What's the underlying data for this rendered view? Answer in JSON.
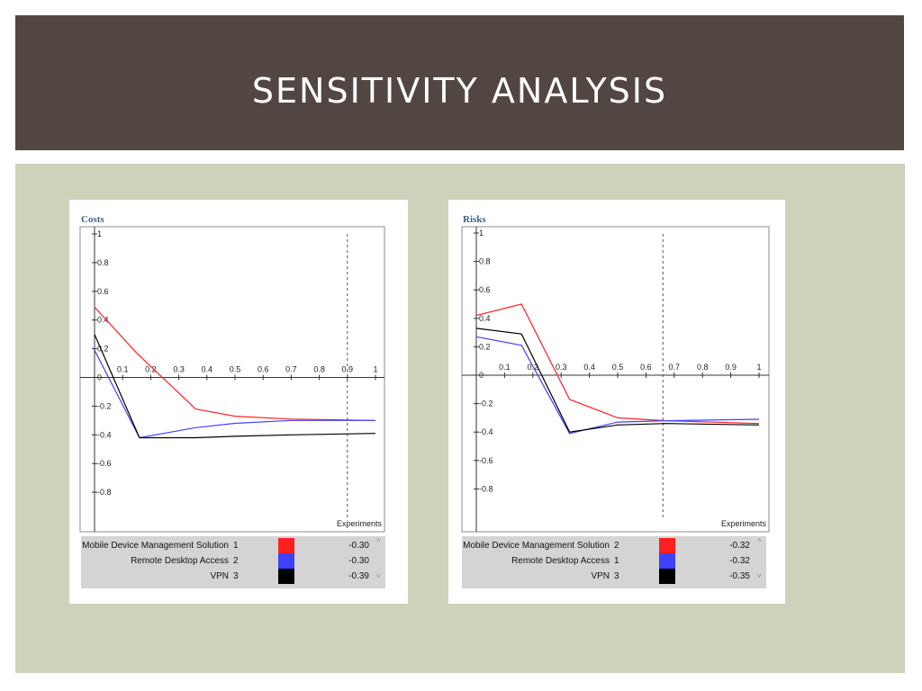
{
  "slide": {
    "title": "SENSITIVITY ANALYSIS"
  },
  "colors": {
    "header": "#524643",
    "content": "#cdd2bb"
  },
  "chart_data": [
    {
      "type": "line",
      "title": "Costs",
      "xlabel": "Experiments",
      "ylabel": "",
      "xlim": [
        0,
        1
      ],
      "ylim": [
        -1,
        1
      ],
      "xticks": [
        "0.1",
        "0.2",
        "0.3",
        "0.4",
        "0.5",
        "0.6",
        "0.7",
        "0.8",
        "0.9",
        "1"
      ],
      "yticks": [
        "1",
        "0.8",
        "0.6",
        "0.4",
        "0.2",
        "0",
        "-0.2",
        "-0.4",
        "-0.6",
        "-0.8"
      ],
      "vline": 0.9,
      "series": [
        {
          "name": "Mobile Device Management Solution",
          "rank": "1",
          "value": "-0.30",
          "color": "#ff2020",
          "x": [
            0,
            0.15,
            0.36,
            0.5,
            0.7,
            1.0
          ],
          "y": [
            0.49,
            0.17,
            -0.22,
            -0.27,
            -0.29,
            -0.3
          ]
        },
        {
          "name": "Remote Desktop Access",
          "rank": "2",
          "value": "-0.30",
          "color": "#4040ff",
          "x": [
            0,
            0.16,
            0.36,
            0.5,
            0.7,
            1.0
          ],
          "y": [
            0.19,
            -0.42,
            -0.35,
            -0.32,
            -0.3,
            -0.3
          ]
        },
        {
          "name": "VPN",
          "rank": "3",
          "value": "-0.39",
          "color": "#000000",
          "x": [
            0,
            0.16,
            0.36,
            0.5,
            0.7,
            1.0
          ],
          "y": [
            0.3,
            -0.42,
            -0.42,
            -0.41,
            -0.4,
            -0.39
          ]
        }
      ]
    },
    {
      "type": "line",
      "title": "Risks",
      "xlabel": "Experiments",
      "ylabel": "",
      "xlim": [
        0,
        1
      ],
      "ylim": [
        -1,
        1
      ],
      "xticks": [
        "0.1",
        "0.2",
        "0.3",
        "0.4",
        "0.5",
        "0.6",
        "0.7",
        "0.8",
        "0.9",
        "1"
      ],
      "yticks": [
        "1",
        "0.8",
        "0.6",
        "0.4",
        "0.2",
        "0",
        "-0.2",
        "-0.4",
        "-0.6",
        "-0.8"
      ],
      "vline": 0.66,
      "series": [
        {
          "name": "Mobile Device Management Solution",
          "rank": "2",
          "value": "-0.32",
          "color": "#ff2020",
          "x": [
            0,
            0.16,
            0.33,
            0.5,
            0.67,
            1.0
          ],
          "y": [
            0.42,
            0.5,
            -0.17,
            -0.3,
            -0.32,
            -0.34
          ]
        },
        {
          "name": "Remote Desktop Access",
          "rank": "1",
          "value": "-0.32",
          "color": "#4040ff",
          "x": [
            0,
            0.16,
            0.33,
            0.5,
            0.67,
            1.0
          ],
          "y": [
            0.27,
            0.21,
            -0.41,
            -0.33,
            -0.32,
            -0.31
          ]
        },
        {
          "name": "VPN",
          "rank": "3",
          "value": "-0.35",
          "color": "#000000",
          "x": [
            0,
            0.16,
            0.33,
            0.5,
            0.67,
            1.0
          ],
          "y": [
            0.33,
            0.29,
            -0.4,
            -0.35,
            -0.34,
            -0.35
          ]
        }
      ]
    }
  ]
}
